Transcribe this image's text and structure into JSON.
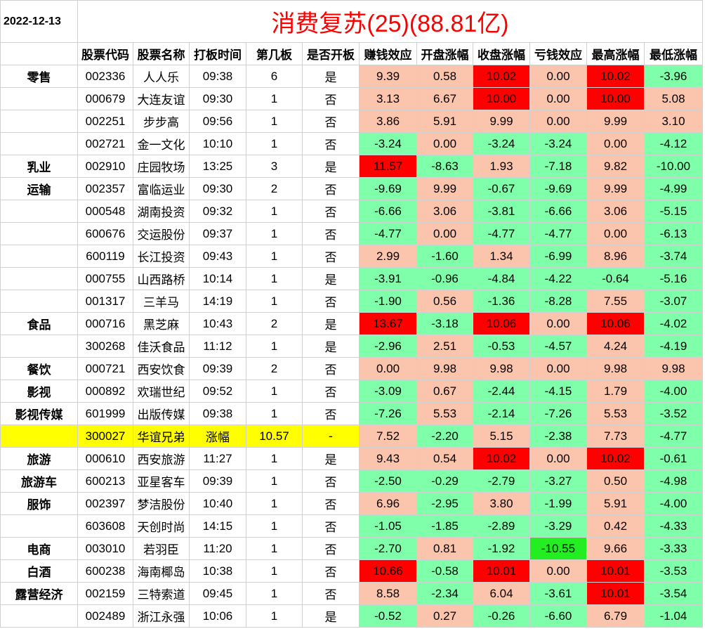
{
  "date": "2022-12-13",
  "title": "消费复苏(25)(88.81亿)",
  "colors": {
    "title": "#ff0000",
    "strong_red": "#ff0000",
    "light_red": "#fbc4ad",
    "green": "#7fffaa",
    "bright_green": "#22ee22",
    "highlight_yellow": "#ffff00"
  },
  "headers": [
    "股票代码",
    "股票名称",
    "打板时间",
    "第几板",
    "是否开板",
    "赚钱效应",
    "开盘涨幅",
    "收盘涨幅",
    "亏钱效应",
    "最高涨幅",
    "最低涨幅"
  ],
  "rows": [
    {
      "sector": "零售",
      "code": "002336",
      "name": "人人乐",
      "time": "09:38",
      "board": "6",
      "opened": "是",
      "earn": "9.39",
      "open_chg": "0.58",
      "close_chg": "10.02",
      "loss": "0.00",
      "high": "10.02",
      "low": "-3.96"
    },
    {
      "sector": "",
      "code": "000679",
      "name": "大连友谊",
      "time": "09:30",
      "board": "1",
      "opened": "否",
      "earn": "3.13",
      "open_chg": "6.67",
      "close_chg": "10.00",
      "loss": "0.00",
      "high": "10.00",
      "low": "5.08"
    },
    {
      "sector": "",
      "code": "002251",
      "name": "步步高",
      "time": "09:56",
      "board": "1",
      "opened": "否",
      "earn": "3.86",
      "open_chg": "5.91",
      "close_chg": "9.99",
      "loss": "0.00",
      "high": "9.99",
      "low": "3.10"
    },
    {
      "sector": "",
      "code": "002721",
      "name": "金一文化",
      "time": "10:10",
      "board": "1",
      "opened": "否",
      "earn": "-3.24",
      "open_chg": "0.00",
      "close_chg": "-3.24",
      "loss": "-3.24",
      "high": "0.00",
      "low": "-4.12"
    },
    {
      "sector": "乳业",
      "code": "002910",
      "name": "庄园牧场",
      "time": "13:25",
      "board": "3",
      "opened": "是",
      "earn": "11.57",
      "open_chg": "-8.63",
      "close_chg": "1.93",
      "loss": "-7.18",
      "high": "9.82",
      "low": "-10.00"
    },
    {
      "sector": "运输",
      "code": "002357",
      "name": "富临运业",
      "time": "09:30",
      "board": "2",
      "opened": "否",
      "earn": "-9.69",
      "open_chg": "9.99",
      "close_chg": "-0.67",
      "loss": "-9.69",
      "high": "9.99",
      "low": "-4.99"
    },
    {
      "sector": "",
      "code": "000548",
      "name": "湖南投资",
      "time": "09:32",
      "board": "1",
      "opened": "否",
      "earn": "-6.66",
      "open_chg": "3.06",
      "close_chg": "-3.81",
      "loss": "-6.66",
      "high": "3.06",
      "low": "-5.15"
    },
    {
      "sector": "",
      "code": "600676",
      "name": "交运股份",
      "time": "09:37",
      "board": "1",
      "opened": "否",
      "earn": "-4.77",
      "open_chg": "0.00",
      "close_chg": "-4.77",
      "loss": "-4.77",
      "high": "0.00",
      "low": "-6.13"
    },
    {
      "sector": "",
      "code": "600119",
      "name": "长江投资",
      "time": "09:43",
      "board": "1",
      "opened": "否",
      "earn": "2.99",
      "open_chg": "-1.60",
      "close_chg": "1.34",
      "loss": "-6.99",
      "high": "8.96",
      "low": "-3.74"
    },
    {
      "sector": "",
      "code": "000755",
      "name": "山西路桥",
      "time": "10:14",
      "board": "1",
      "opened": "是",
      "earn": "-3.91",
      "open_chg": "-0.96",
      "close_chg": "-4.84",
      "loss": "-4.22",
      "high": "-0.64",
      "low": "-5.16"
    },
    {
      "sector": "",
      "code": "001317",
      "name": "三羊马",
      "time": "14:19",
      "board": "1",
      "opened": "否",
      "earn": "-1.90",
      "open_chg": "0.56",
      "close_chg": "-1.36",
      "loss": "-8.28",
      "high": "7.55",
      "low": "-3.07"
    },
    {
      "sector": "食品",
      "code": "000716",
      "name": "黑芝麻",
      "time": "10:43",
      "board": "2",
      "opened": "是",
      "earn": "13.67",
      "open_chg": "-3.18",
      "close_chg": "10.06",
      "loss": "0.00",
      "high": "10.06",
      "low": "-4.02"
    },
    {
      "sector": "",
      "code": "300268",
      "name": "佳沃食品",
      "time": "11:12",
      "board": "1",
      "opened": "是",
      "earn": "-2.96",
      "open_chg": "2.51",
      "close_chg": "-0.53",
      "loss": "-4.57",
      "high": "4.24",
      "low": "-4.19"
    },
    {
      "sector": "餐饮",
      "code": "000721",
      "name": "西安饮食",
      "time": "09:39",
      "board": "2",
      "opened": "否",
      "earn": "0.00",
      "open_chg": "9.98",
      "close_chg": "9.98",
      "loss": "0.00",
      "high": "9.98",
      "low": "9.98"
    },
    {
      "sector": "影视",
      "code": "000892",
      "name": "欢瑞世纪",
      "time": "09:52",
      "board": "1",
      "opened": "否",
      "earn": "-3.09",
      "open_chg": "0.67",
      "close_chg": "-2.44",
      "loss": "-4.15",
      "high": "1.79",
      "low": "-4.00"
    },
    {
      "sector": "影视传媒",
      "code": "601999",
      "name": "出版传媒",
      "time": "09:38",
      "board": "1",
      "opened": "否",
      "earn": "-7.26",
      "open_chg": "5.53",
      "close_chg": "-2.14",
      "loss": "-7.26",
      "high": "5.53",
      "low": "-3.52"
    },
    {
      "sector": "",
      "code": "300027",
      "name": "华谊兄弟",
      "time": "涨幅",
      "board": "10.57",
      "opened": "-",
      "earn": "7.52",
      "open_chg": "-2.20",
      "close_chg": "5.15",
      "loss": "-2.38",
      "high": "7.73",
      "low": "-4.77",
      "highlight": true
    },
    {
      "sector": "旅游",
      "code": "000610",
      "name": "西安旅游",
      "time": "11:27",
      "board": "1",
      "opened": "是",
      "earn": "9.43",
      "open_chg": "0.54",
      "close_chg": "10.02",
      "loss": "0.00",
      "high": "10.02",
      "low": "-0.61"
    },
    {
      "sector": "旅游车",
      "code": "600213",
      "name": "亚星客车",
      "time": "09:39",
      "board": "1",
      "opened": "否",
      "earn": "-2.50",
      "open_chg": "-0.29",
      "close_chg": "-2.79",
      "loss": "-3.27",
      "high": "0.50",
      "low": "-4.98"
    },
    {
      "sector": "服饰",
      "code": "002397",
      "name": "梦洁股份",
      "time": "10:40",
      "board": "1",
      "opened": "否",
      "earn": "6.96",
      "open_chg": "-2.95",
      "close_chg": "3.80",
      "loss": "-1.99",
      "high": "5.91",
      "low": "-4.00"
    },
    {
      "sector": "",
      "code": "603608",
      "name": "天创时尚",
      "time": "14:15",
      "board": "1",
      "opened": "否",
      "earn": "-1.05",
      "open_chg": "-1.85",
      "close_chg": "-2.89",
      "loss": "-3.29",
      "high": "0.42",
      "low": "-4.33"
    },
    {
      "sector": "电商",
      "code": "003010",
      "name": "若羽臣",
      "time": "11:20",
      "board": "1",
      "opened": "否",
      "earn": "-2.70",
      "open_chg": "0.81",
      "close_chg": "-1.92",
      "loss": "-10.55",
      "high": "9.66",
      "low": "-3.33"
    },
    {
      "sector": "白酒",
      "code": "600238",
      "name": "海南椰岛",
      "time": "10:38",
      "board": "1",
      "opened": "否",
      "earn": "10.66",
      "open_chg": "-0.58",
      "close_chg": "10.01",
      "loss": "0.00",
      "high": "10.01",
      "low": "-3.53"
    },
    {
      "sector": "露营经济",
      "code": "002159",
      "name": "三特索道",
      "time": "09:45",
      "board": "1",
      "opened": "否",
      "earn": "8.58",
      "open_chg": "-2.34",
      "close_chg": "6.04",
      "loss": "-3.61",
      "high": "10.01",
      "low": "-3.54"
    },
    {
      "sector": "",
      "code": "002489",
      "name": "浙江永强",
      "time": "10:06",
      "board": "1",
      "opened": "是",
      "earn": "-0.52",
      "open_chg": "0.27",
      "close_chg": "-0.26",
      "loss": "-6.60",
      "high": "6.79",
      "low": "-1.04"
    }
  ]
}
